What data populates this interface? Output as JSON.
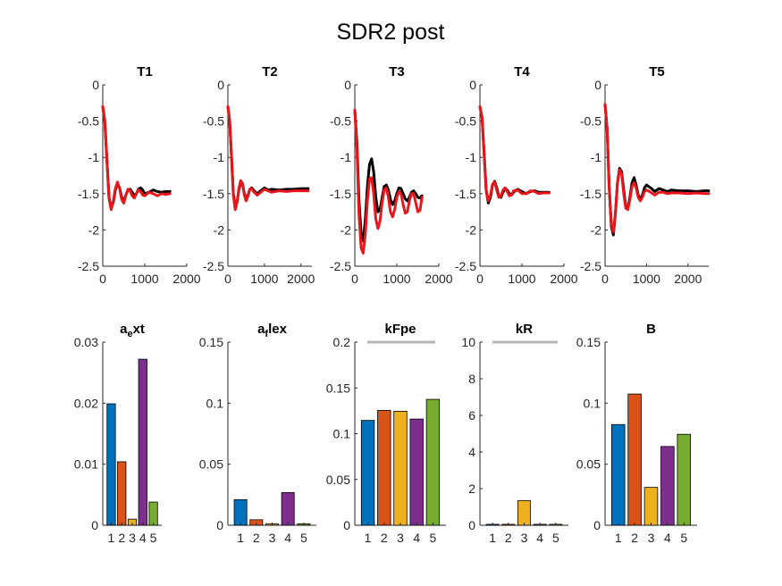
{
  "figure_title": "SDR2 post",
  "colors": {
    "measured": "#000000",
    "fit": "#e8161b",
    "bars": [
      "#0072bd",
      "#d95319",
      "#edb120",
      "#7e2f8e",
      "#77ac30"
    ],
    "bound": "#b4b4b4"
  },
  "chart_data": [
    {
      "type": "line",
      "title": "T1",
      "xlim": [
        0,
        2000
      ],
      "ylim": [
        -2.5,
        0
      ],
      "xticks": [
        "0",
        "1000",
        "2000"
      ],
      "yticks": [
        "0",
        "-0.5",
        "-1",
        "-1.5",
        "-2",
        "-2.5"
      ],
      "series": [
        {
          "color": "measured",
          "x": [
            0,
            50,
            100,
            150,
            200,
            250,
            300,
            350,
            400,
            450,
            500,
            550,
            600,
            650,
            700,
            750,
            800,
            850,
            900,
            950,
            1000,
            1100,
            1200,
            1300,
            1400,
            1500,
            1600
          ],
          "y": [
            -0.3,
            -0.5,
            -1.05,
            -1.55,
            -1.7,
            -1.62,
            -1.45,
            -1.36,
            -1.42,
            -1.55,
            -1.6,
            -1.52,
            -1.45,
            -1.44,
            -1.48,
            -1.53,
            -1.5,
            -1.44,
            -1.42,
            -1.45,
            -1.5,
            -1.48,
            -1.45,
            -1.47,
            -1.48,
            -1.47,
            -1.47
          ]
        },
        {
          "color": "fit",
          "x": [
            0,
            50,
            100,
            150,
            200,
            250,
            300,
            350,
            400,
            450,
            500,
            550,
            600,
            650,
            700,
            750,
            800,
            850,
            900,
            950,
            1000,
            1100,
            1200,
            1300,
            1400,
            1500,
            1600
          ],
          "y": [
            -0.3,
            -0.5,
            -1.05,
            -1.57,
            -1.72,
            -1.6,
            -1.43,
            -1.34,
            -1.43,
            -1.58,
            -1.63,
            -1.52,
            -1.44,
            -1.46,
            -1.53,
            -1.56,
            -1.5,
            -1.45,
            -1.47,
            -1.52,
            -1.53,
            -1.48,
            -1.5,
            -1.53,
            -1.5,
            -1.51,
            -1.5
          ]
        }
      ]
    },
    {
      "type": "line",
      "title": "T2",
      "xlim": [
        0,
        2300
      ],
      "ylim": [
        -2.5,
        0
      ],
      "xticks": [
        "0",
        "1000",
        "2000"
      ],
      "yticks": [
        "0",
        "-0.5",
        "-1",
        "-1.5",
        "-2",
        "-2.5"
      ],
      "series": [
        {
          "color": "measured",
          "x": [
            0,
            50,
            100,
            150,
            200,
            250,
            300,
            350,
            400,
            450,
            500,
            550,
            600,
            650,
            700,
            800,
            900,
            1000,
            1100,
            1200,
            1400,
            1600,
            1800,
            2000,
            2200
          ],
          "y": [
            -0.3,
            -0.5,
            -1.0,
            -1.5,
            -1.68,
            -1.62,
            -1.45,
            -1.34,
            -1.36,
            -1.5,
            -1.57,
            -1.52,
            -1.44,
            -1.42,
            -1.45,
            -1.5,
            -1.46,
            -1.42,
            -1.45,
            -1.44,
            -1.45,
            -1.44,
            -1.44,
            -1.43,
            -1.43
          ]
        },
        {
          "color": "fit",
          "x": [
            0,
            50,
            100,
            150,
            200,
            250,
            300,
            350,
            400,
            450,
            500,
            550,
            600,
            650,
            700,
            800,
            900,
            1000,
            1100,
            1200,
            1400,
            1600,
            1800,
            2000,
            2200
          ],
          "y": [
            -0.3,
            -0.5,
            -1.0,
            -1.52,
            -1.72,
            -1.62,
            -1.43,
            -1.32,
            -1.37,
            -1.52,
            -1.6,
            -1.53,
            -1.44,
            -1.43,
            -1.47,
            -1.52,
            -1.48,
            -1.44,
            -1.46,
            -1.48,
            -1.46,
            -1.47,
            -1.46,
            -1.46,
            -1.46
          ]
        }
      ]
    },
    {
      "type": "line",
      "title": "T3",
      "xlim": [
        0,
        2000
      ],
      "ylim": [
        -2.5,
        0
      ],
      "xticks": [
        "0",
        "1000",
        "2000"
      ],
      "yticks": [
        "0",
        "-0.5",
        "-1",
        "-1.5",
        "-2",
        "-2.5"
      ],
      "series": [
        {
          "color": "measured",
          "x": [
            0,
            50,
            100,
            150,
            200,
            250,
            300,
            350,
            400,
            450,
            500,
            550,
            600,
            650,
            700,
            750,
            800,
            850,
            900,
            950,
            1000,
            1050,
            1100,
            1150,
            1200,
            1250,
            1300,
            1350,
            1400,
            1450,
            1500,
            1550,
            1600
          ],
          "y": [
            -0.35,
            -0.8,
            -1.6,
            -2.05,
            -2.15,
            -1.85,
            -1.4,
            -1.1,
            -1.02,
            -1.2,
            -1.55,
            -1.75,
            -1.72,
            -1.55,
            -1.4,
            -1.38,
            -1.45,
            -1.58,
            -1.65,
            -1.6,
            -1.5,
            -1.42,
            -1.43,
            -1.5,
            -1.57,
            -1.6,
            -1.55,
            -1.48,
            -1.46,
            -1.5,
            -1.55,
            -1.56,
            -1.53
          ]
        },
        {
          "color": "fit",
          "x": [
            0,
            50,
            100,
            150,
            200,
            250,
            300,
            350,
            400,
            450,
            500,
            550,
            600,
            650,
            700,
            750,
            800,
            850,
            900,
            950,
            1000,
            1050,
            1100,
            1150,
            1200,
            1250,
            1300,
            1350,
            1400,
            1450,
            1500,
            1550,
            1600
          ],
          "y": [
            -0.35,
            -0.9,
            -1.8,
            -2.25,
            -2.32,
            -2.05,
            -1.6,
            -1.3,
            -1.28,
            -1.5,
            -1.85,
            -1.98,
            -1.88,
            -1.62,
            -1.45,
            -1.42,
            -1.55,
            -1.75,
            -1.82,
            -1.72,
            -1.55,
            -1.47,
            -1.5,
            -1.65,
            -1.77,
            -1.75,
            -1.6,
            -1.5,
            -1.5,
            -1.62,
            -1.75,
            -1.73,
            -1.55
          ]
        }
      ]
    },
    {
      "type": "line",
      "title": "T4",
      "xlim": [
        0,
        2000
      ],
      "ylim": [
        -2.5,
        0
      ],
      "xticks": [
        "0",
        "1000",
        "2000"
      ],
      "yticks": [
        "0",
        "-0.5",
        "-1",
        "-1.5",
        "-2",
        "-2.5"
      ],
      "series": [
        {
          "color": "measured",
          "x": [
            0,
            50,
            100,
            150,
            200,
            250,
            300,
            350,
            400,
            450,
            500,
            550,
            600,
            650,
            700,
            750,
            800,
            900,
            1000,
            1100,
            1200,
            1300,
            1400,
            1500,
            1650
          ],
          "y": [
            -0.3,
            -0.45,
            -0.95,
            -1.45,
            -1.63,
            -1.55,
            -1.38,
            -1.33,
            -1.42,
            -1.53,
            -1.55,
            -1.48,
            -1.43,
            -1.45,
            -1.5,
            -1.52,
            -1.48,
            -1.44,
            -1.47,
            -1.5,
            -1.47,
            -1.46,
            -1.48,
            -1.48,
            -1.48
          ]
        },
        {
          "color": "fit",
          "x": [
            0,
            50,
            100,
            150,
            200,
            250,
            300,
            350,
            400,
            450,
            500,
            550,
            600,
            650,
            700,
            750,
            800,
            900,
            1000,
            1100,
            1200,
            1300,
            1400,
            1500,
            1650
          ],
          "y": [
            -0.3,
            -0.45,
            -0.95,
            -1.45,
            -1.6,
            -1.52,
            -1.37,
            -1.34,
            -1.45,
            -1.55,
            -1.53,
            -1.45,
            -1.42,
            -1.47,
            -1.53,
            -1.52,
            -1.46,
            -1.45,
            -1.5,
            -1.5,
            -1.46,
            -1.47,
            -1.5,
            -1.49,
            -1.49
          ]
        }
      ]
    },
    {
      "type": "line",
      "title": "T5",
      "xlim": [
        0,
        2500
      ],
      "ylim": [
        -2.5,
        0
      ],
      "xticks": [
        "0",
        "1000",
        "2000"
      ],
      "yticks": [
        "0",
        "-0.5",
        "-1",
        "-1.5",
        "-2",
        "-2.5"
      ],
      "series": [
        {
          "color": "measured",
          "x": [
            0,
            50,
            100,
            150,
            200,
            250,
            300,
            350,
            400,
            450,
            500,
            550,
            600,
            650,
            700,
            750,
            800,
            850,
            900,
            950,
            1000,
            1100,
            1200,
            1300,
            1400,
            1500,
            1600,
            1800,
            2000,
            2200,
            2400,
            2500
          ],
          "y": [
            -0.27,
            -0.6,
            -1.4,
            -1.95,
            -2.07,
            -1.78,
            -1.35,
            -1.15,
            -1.2,
            -1.45,
            -1.68,
            -1.7,
            -1.55,
            -1.35,
            -1.28,
            -1.38,
            -1.52,
            -1.58,
            -1.52,
            -1.42,
            -1.38,
            -1.42,
            -1.47,
            -1.43,
            -1.45,
            -1.47,
            -1.45,
            -1.46,
            -1.46,
            -1.47,
            -1.46,
            -1.46
          ]
        },
        {
          "color": "fit",
          "x": [
            0,
            50,
            100,
            150,
            200,
            250,
            300,
            350,
            400,
            450,
            500,
            550,
            600,
            650,
            700,
            750,
            800,
            850,
            900,
            950,
            1000,
            1100,
            1200,
            1300,
            1400,
            1500,
            1600,
            1800,
            2000,
            2200,
            2400,
            2500
          ],
          "y": [
            -0.27,
            -0.6,
            -1.4,
            -1.92,
            -2.03,
            -1.77,
            -1.35,
            -1.17,
            -1.23,
            -1.5,
            -1.7,
            -1.72,
            -1.58,
            -1.4,
            -1.35,
            -1.42,
            -1.55,
            -1.6,
            -1.55,
            -1.47,
            -1.45,
            -1.48,
            -1.52,
            -1.48,
            -1.48,
            -1.5,
            -1.49,
            -1.49,
            -1.5,
            -1.49,
            -1.5,
            -1.5
          ]
        }
      ]
    },
    {
      "type": "bar",
      "title": "a_ext",
      "categories": [
        "1",
        "2",
        "3",
        "4",
        "5"
      ],
      "values": [
        0.0199,
        0.0104,
        0.001,
        0.0272,
        0.0038
      ],
      "ylim": [
        0,
        0.03
      ],
      "yticks": [
        "0",
        "0.01",
        "0.02",
        "0.03"
      ]
    },
    {
      "type": "bar",
      "title": "a_flex",
      "categories": [
        "1",
        "2",
        "3",
        "4",
        "5"
      ],
      "values": [
        0.021,
        0.0045,
        0.0012,
        0.0268,
        0.0012
      ],
      "ylim": [
        0,
        0.15
      ],
      "yticks": [
        "0",
        "0.05",
        "0.1",
        "0.15"
      ]
    },
    {
      "type": "bar",
      "title": "kFpe",
      "categories": [
        "1",
        "2",
        "3",
        "4",
        "5"
      ],
      "values": [
        0.1145,
        0.1255,
        0.1245,
        0.116,
        0.1375
      ],
      "ylim": [
        0,
        0.2
      ],
      "yticks": [
        "0",
        "0.05",
        "0.1",
        "0.15",
        "0.2"
      ],
      "bound_line": 0.2
    },
    {
      "type": "bar",
      "title": "kR",
      "categories": [
        "1",
        "2",
        "3",
        "4",
        "5"
      ],
      "values": [
        0.05,
        0.05,
        1.35,
        0.05,
        0.05
      ],
      "ylim": [
        0,
        10
      ],
      "yticks": [
        "0",
        "2",
        "4",
        "6",
        "8",
        "10"
      ],
      "bound_line": 10
    },
    {
      "type": "bar",
      "title": "B",
      "categories": [
        "1",
        "2",
        "3",
        "4",
        "5"
      ],
      "values": [
        0.0825,
        0.1075,
        0.031,
        0.0645,
        0.0745
      ],
      "ylim": [
        0,
        0.15
      ],
      "yticks": [
        "0",
        "0.05",
        "0.1",
        "0.15"
      ]
    }
  ]
}
